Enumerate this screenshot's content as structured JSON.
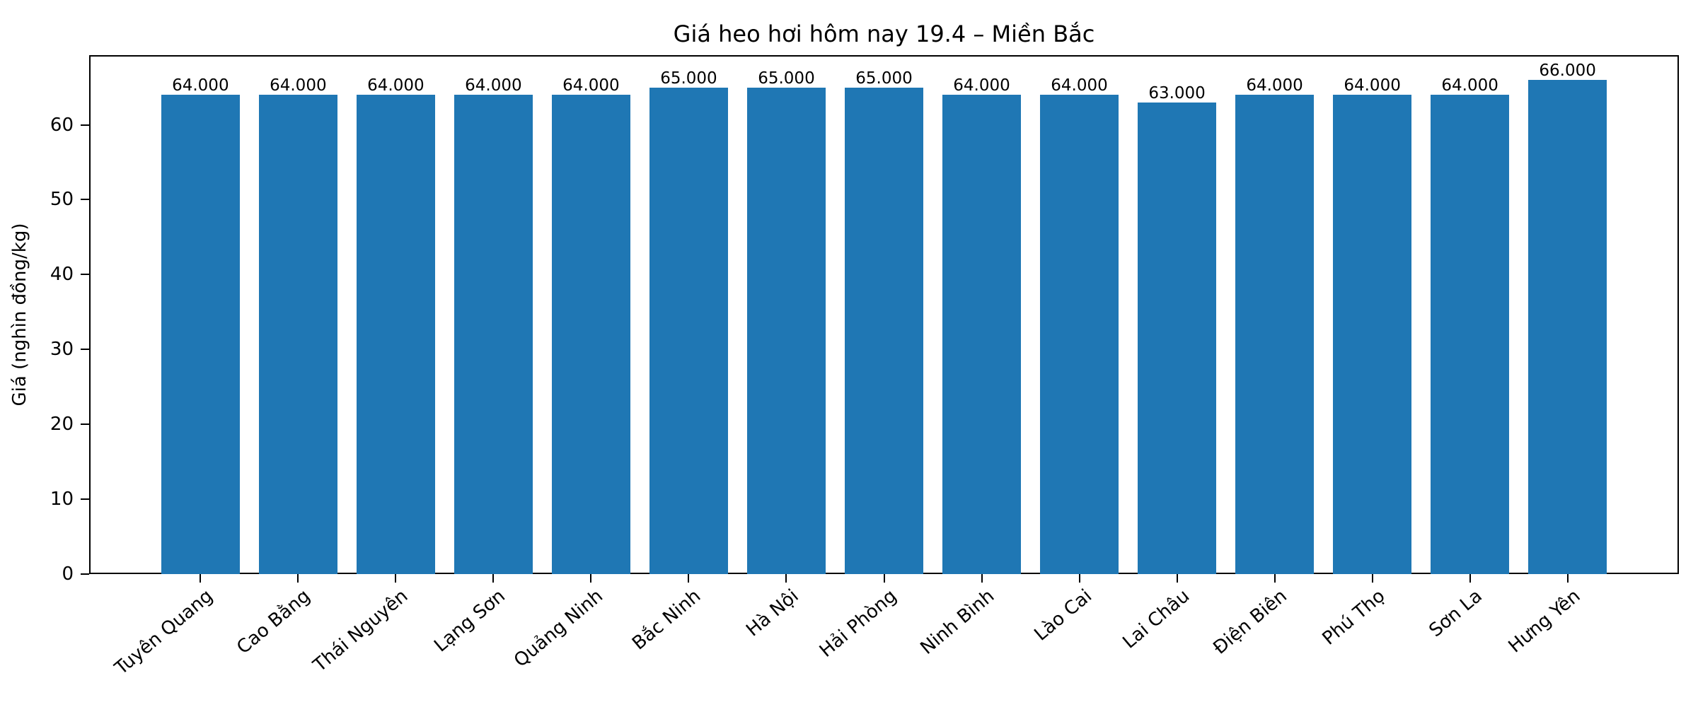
{
  "chart_data": {
    "type": "bar",
    "title": "Giá heo hơi hôm nay 19.4 – Miền Bắc",
    "xlabel": "",
    "ylabel": "Giá (nghìn đồng/kg)",
    "categories": [
      "Tuyên Quang",
      "Cao Bằng",
      "Thái Nguyên",
      "Lạng Sơn",
      "Quảng Ninh",
      "Bắc Ninh",
      "Hà Nội",
      "Hải Phòng",
      "Ninh Bình",
      "Lào Cai",
      "Lai Châu",
      "Điện Biên",
      "Phú Thọ",
      "Sơn La",
      "Hưng Yên"
    ],
    "values": [
      64,
      64,
      64,
      64,
      64,
      65,
      65,
      65,
      64,
      64,
      63,
      64,
      64,
      64,
      66
    ],
    "value_labels": [
      "64.000",
      "64.000",
      "64.000",
      "64.000",
      "64.000",
      "65.000",
      "65.000",
      "65.000",
      "64.000",
      "64.000",
      "63.000",
      "64.000",
      "64.000",
      "64.000",
      "66.000"
    ],
    "yticks": [
      0,
      10,
      20,
      30,
      40,
      50,
      60
    ],
    "ylim": [
      0,
      69.3
    ],
    "grid": false,
    "legend": null,
    "bar_color": "#1f77b4",
    "xtick_rotation": 40
  }
}
